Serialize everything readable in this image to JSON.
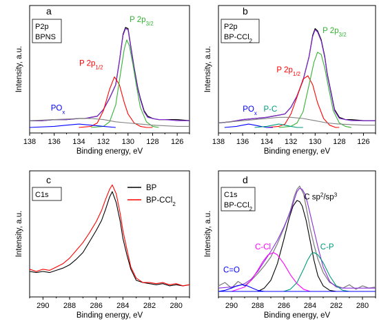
{
  "chart_data": [
    {
      "type": "line",
      "panel_letter": "a",
      "sample_box": [
        "P2p",
        "BPNS"
      ],
      "xlabel": "Binding energy, eV",
      "ylabel": "Intensity, a.u.",
      "xlim": [
        138,
        125
      ],
      "ylim": [
        0,
        100
      ],
      "x_ticks": [
        138,
        136,
        134,
        132,
        130,
        128,
        126
      ],
      "grid": false,
      "annotations": [
        {
          "text": "P 2p",
          "sub": "3/2",
          "color": "#33b233",
          "x": 128.9,
          "y": 94
        },
        {
          "text": "P 2p",
          "sub": "1/2",
          "color": "#ff0000",
          "x": 133.0,
          "y": 55
        },
        {
          "text": "PO",
          "sub": "x",
          "color": "#0000ff",
          "x": 135.7,
          "y": 15
        }
      ],
      "series": [
        {
          "color": "#000000",
          "role": "data",
          "x": [
            138,
            137,
            136,
            135,
            134,
            133.5,
            133,
            132.5,
            132,
            131.5,
            131,
            130.7,
            130.4,
            130.2,
            130,
            129.8,
            129.5,
            129.2,
            129,
            128.7,
            128.4,
            128,
            127.5,
            127,
            126,
            125
          ],
          "y": [
            6,
            6,
            7,
            7,
            8,
            8,
            9,
            10,
            16,
            26,
            38,
            59,
            83,
            89,
            88,
            74,
            53,
            35,
            26,
            15,
            10,
            8,
            7,
            7,
            7,
            6
          ]
        },
        {
          "color": "#8a2be2",
          "role": "envelope",
          "x": [
            138,
            137,
            136,
            135,
            134,
            133.5,
            133,
            132.5,
            132,
            131.5,
            131,
            130.7,
            130.4,
            130.2,
            130,
            129.8,
            129.5,
            129.2,
            129,
            128.7,
            128.4,
            128,
            127.5,
            127,
            126,
            125
          ],
          "y": [
            6,
            6,
            7,
            7,
            8,
            8,
            9,
            10,
            16,
            26,
            38,
            59,
            82,
            88,
            87,
            73,
            52,
            34,
            25,
            14,
            9,
            8,
            7,
            7,
            6,
            6
          ]
        },
        {
          "color": "#ff0000",
          "role": "P 2p1/2",
          "x": [
            134,
            133,
            132.5,
            132,
            131.5,
            131.1,
            130.7,
            130.3,
            130,
            129.5,
            129,
            128.5,
            128
          ],
          "y": [
            0,
            1,
            4,
            15,
            34,
            45,
            38,
            22,
            12,
            4,
            1,
            0,
            0
          ]
        },
        {
          "color": "#33b233",
          "role": "P 2p3/2",
          "x": [
            133,
            132,
            131.5,
            131,
            130.6,
            130.3,
            130.1,
            129.9,
            129.6,
            129.3,
            129,
            128.5,
            128,
            127.5
          ],
          "y": [
            0,
            1,
            5,
            20,
            49,
            70,
            78,
            73,
            56,
            36,
            18,
            5,
            1,
            0
          ]
        },
        {
          "color": "#808080",
          "role": "background",
          "x": [
            138,
            136,
            134,
            133,
            132,
            131,
            130,
            129,
            128,
            126,
            125
          ],
          "y": [
            6,
            7,
            8,
            8,
            7,
            5,
            4,
            3,
            2,
            1,
            1
          ]
        },
        {
          "color": "#0000ff",
          "role": "POx",
          "x": [
            138,
            136,
            135,
            134,
            133,
            132,
            131
          ],
          "y": [
            0,
            1,
            2,
            3,
            2,
            1,
            0
          ]
        }
      ]
    },
    {
      "type": "line",
      "panel_letter": "b",
      "sample_box": [
        "P2p",
        "BP-CCl2"
      ],
      "xlabel": "Binding energy, eV",
      "ylabel": "Intensity, a.u.",
      "xlim": [
        138,
        125
      ],
      "ylim": [
        0,
        100
      ],
      "x_ticks": [
        138,
        136,
        134,
        132,
        130,
        128,
        126
      ],
      "grid": false,
      "annotations": [
        {
          "text": "P 2p",
          "sub": "3/2",
          "color": "#33b233",
          "x": 128.4,
          "y": 84
        },
        {
          "text": "P 2p",
          "sub": "1/2",
          "color": "#ff0000",
          "x": 132.2,
          "y": 49
        },
        {
          "text": "PO",
          "sub": "x",
          "color": "#0000ff",
          "x": 135.4,
          "y": 14
        },
        {
          "text": "P-C",
          "color": "#00997a",
          "x": 133.7,
          "y": 14
        }
      ],
      "series": [
        {
          "color": "#000000",
          "role": "data",
          "x": [
            138,
            137,
            136,
            135,
            134,
            133.5,
            133,
            132.5,
            132,
            131.5,
            131,
            130.5,
            130.2,
            130,
            129.8,
            129.5,
            129.2,
            129,
            128.7,
            128.4,
            128,
            127.5,
            127,
            126,
            125
          ],
          "y": [
            4,
            5,
            7,
            8,
            9,
            10,
            11,
            12,
            18,
            28,
            42,
            63,
            82,
            88,
            86,
            78,
            63,
            48,
            32,
            16,
            9,
            7,
            7,
            6,
            6
          ]
        },
        {
          "color": "#8a2be2",
          "role": "envelope",
          "x": [
            138,
            137,
            136,
            135,
            134,
            133.5,
            133,
            132.5,
            132,
            131.5,
            131,
            130.5,
            130.2,
            130,
            129.8,
            129.5,
            129.2,
            129,
            128.7,
            128.4,
            128,
            127.5,
            127,
            126,
            125
          ],
          "y": [
            4,
            5,
            7,
            8,
            9,
            10,
            11,
            12,
            18,
            28,
            42,
            63,
            81,
            87,
            85,
            77,
            62,
            47,
            31,
            15,
            8,
            7,
            6,
            6,
            6
          ]
        },
        {
          "color": "#ff0000",
          "role": "P 2p1/2",
          "x": [
            134,
            133,
            132.5,
            132,
            131.5,
            131,
            130.6,
            130.2,
            129.8,
            129.3,
            128.8,
            128.3,
            128
          ],
          "y": [
            0,
            1,
            3,
            12,
            27,
            43,
            46,
            38,
            22,
            8,
            2,
            0,
            0
          ]
        },
        {
          "color": "#33b233",
          "role": "P 2p3/2",
          "x": [
            133,
            132,
            131.5,
            131,
            130.5,
            130.1,
            129.8,
            129.5,
            129.2,
            128.9,
            128.5,
            128,
            127.5,
            127
          ],
          "y": [
            0,
            1,
            4,
            14,
            38,
            58,
            67,
            65,
            53,
            36,
            15,
            4,
            1,
            0
          ]
        },
        {
          "color": "#808080",
          "role": "background",
          "x": [
            138,
            136,
            134,
            133,
            132,
            131,
            130,
            129,
            128,
            126,
            125
          ],
          "y": [
            4,
            6,
            8,
            9,
            9,
            8,
            6,
            4,
            3,
            2,
            2
          ]
        },
        {
          "color": "#0000ff",
          "role": "POx",
          "x": [
            137.5,
            136.5,
            136,
            135.5,
            135,
            134.5,
            134,
            133.5
          ],
          "y": [
            0,
            1,
            2,
            3,
            2,
            1,
            0,
            0
          ]
        },
        {
          "color": "#00997a",
          "role": "P-C",
          "x": [
            135,
            134,
            133.5,
            133,
            132.5,
            132,
            131.5,
            131
          ],
          "y": [
            0,
            1,
            2,
            3,
            2,
            1,
            0,
            0
          ]
        }
      ]
    },
    {
      "type": "line",
      "panel_letter": "c",
      "sample_box": [
        "C1s"
      ],
      "xlabel": "Binding energy, eV",
      "ylabel": "Intensity, a.u.",
      "xlim": [
        291,
        279
      ],
      "ylim": [
        0,
        100
      ],
      "x_ticks": [
        290,
        288,
        286,
        284,
        282,
        280
      ],
      "grid": false,
      "legend": {
        "position": "top-right",
        "entries": [
          {
            "label": "BP",
            "color": "#000000"
          },
          {
            "label": "BP-CCl",
            "sub": "2",
            "color": "#ff0000"
          }
        ]
      },
      "series": [
        {
          "name": "BP",
          "color": "#000000",
          "x": [
            291,
            290.5,
            290,
            289.5,
            289,
            288.5,
            288,
            287.5,
            287,
            286.5,
            286,
            285.6,
            285.3,
            285,
            284.8,
            284.5,
            284.2,
            284,
            283.7,
            283.4,
            283,
            282.5,
            282,
            281.5,
            281,
            280.5,
            280,
            279.5,
            279
          ],
          "y": [
            18,
            17,
            18,
            17,
            19,
            21,
            24,
            29,
            35,
            45,
            55,
            64,
            74,
            85,
            90,
            80,
            63,
            48,
            33,
            20,
            10,
            8,
            7,
            6,
            7,
            5,
            6,
            5,
            6
          ]
        },
        {
          "name": "BP-CCl2",
          "color": "#ff0000",
          "x": [
            291,
            290.5,
            290,
            289.5,
            289,
            288.5,
            288,
            287.5,
            287,
            286.5,
            286,
            285.6,
            285.3,
            285,
            284.8,
            284.5,
            284.2,
            284,
            283.7,
            283.4,
            283,
            282.5,
            282,
            281.5,
            281,
            280.5,
            280,
            279.5,
            279
          ],
          "y": [
            20,
            18,
            20,
            19,
            22,
            25,
            30,
            37,
            44,
            53,
            63,
            73,
            83,
            92,
            96,
            88,
            70,
            55,
            38,
            22,
            12,
            8,
            8,
            7,
            8,
            6,
            7,
            5,
            6
          ]
        }
      ]
    },
    {
      "type": "line",
      "panel_letter": "d",
      "sample_box": [
        "C1s",
        "BP-CCl2"
      ],
      "xlabel": "Binding energy, eV",
      "ylabel": "Intensity, a.u.",
      "xlim": [
        291,
        279
      ],
      "ylim": [
        0,
        100
      ],
      "x_ticks": [
        290,
        288,
        286,
        284,
        282,
        280
      ],
      "grid": false,
      "annotations": [
        {
          "text": "C sp",
          "sup1": "2",
          "mid": "/sp",
          "sup2": "3",
          "color": "#000000",
          "x": 283.2,
          "y": 83
        },
        {
          "text": "C-Cl",
          "color": "#ff00ff",
          "x": 287.6,
          "y": 38
        },
        {
          "text": "C-P",
          "color": "#00997a",
          "x": 282.7,
          "y": 38
        },
        {
          "text": "C=O",
          "color": "#0000ff",
          "x": 290.0,
          "y": 17
        }
      ],
      "series": [
        {
          "color": "#808080",
          "role": "data",
          "x": [
            291,
            290.5,
            290,
            289.5,
            289,
            288.5,
            288,
            287.5,
            287,
            286.5,
            286,
            285.5,
            285.2,
            285,
            284.8,
            284.5,
            284.2,
            284,
            283.7,
            283.4,
            283,
            282.5,
            282,
            281.5,
            281,
            280.5,
            280,
            279.5,
            279
          ],
          "y": [
            5,
            8,
            3,
            9,
            5,
            10,
            16,
            23,
            31,
            43,
            57,
            73,
            86,
            92,
            95,
            88,
            70,
            57,
            42,
            29,
            17,
            8,
            5,
            3,
            6,
            2,
            5,
            3,
            4
          ]
        },
        {
          "color": "#8a2be2",
          "role": "envelope",
          "x": [
            291,
            290,
            289.5,
            289,
            288.5,
            288,
            287.5,
            287,
            286.5,
            286,
            285.5,
            285.2,
            285,
            284.8,
            284.6,
            284.4,
            284.2,
            284,
            283.7,
            283.4,
            283,
            282.5,
            282,
            281.5,
            281,
            280,
            279
          ],
          "y": [
            3,
            4,
            5,
            7,
            11,
            18,
            27,
            36,
            46,
            58,
            72,
            83,
            90,
            93,
            92,
            88,
            80,
            70,
            55,
            40,
            22,
            9,
            4,
            3,
            3,
            3,
            3
          ]
        },
        {
          "color": "#000000",
          "role": "C sp2/sp3",
          "x": [
            288,
            287.5,
            287,
            286.5,
            286,
            285.6,
            285.3,
            285,
            284.8,
            284.6,
            284.3,
            284,
            283.7,
            283.4,
            283,
            282.5,
            282
          ],
          "y": [
            0,
            3,
            10,
            25,
            47,
            66,
            77,
            82,
            81,
            77,
            64,
            46,
            28,
            14,
            5,
            1,
            0
          ]
        },
        {
          "color": "#ff00ff",
          "role": "C-Cl",
          "x": [
            290,
            289,
            288.5,
            288,
            287.6,
            287.2,
            286.8,
            286.5,
            286,
            285.5,
            285,
            284.5,
            284
          ],
          "y": [
            0,
            4,
            10,
            19,
            27,
            33,
            35,
            33,
            25,
            15,
            7,
            2,
            0
          ]
        },
        {
          "color": "#00997a",
          "role": "C-P",
          "x": [
            286,
            285.5,
            285,
            284.5,
            284.2,
            283.9,
            283.7,
            283.4,
            283,
            282.5,
            282,
            281.5,
            281
          ],
          "y": [
            0,
            2,
            8,
            20,
            28,
            34,
            35,
            33,
            26,
            14,
            5,
            1,
            0
          ]
        },
        {
          "color": "#0000ff",
          "role": "C=O",
          "x": [
            291,
            290.5,
            290,
            289.6,
            289.2,
            288.8,
            288.4,
            288,
            287.5
          ],
          "y": [
            0,
            1,
            3,
            5,
            6,
            5,
            3,
            1,
            0
          ]
        },
        {
          "color": "#0000ff",
          "role": "baseline",
          "x": [
            291,
            279
          ],
          "y": [
            0,
            0
          ]
        }
      ]
    }
  ]
}
